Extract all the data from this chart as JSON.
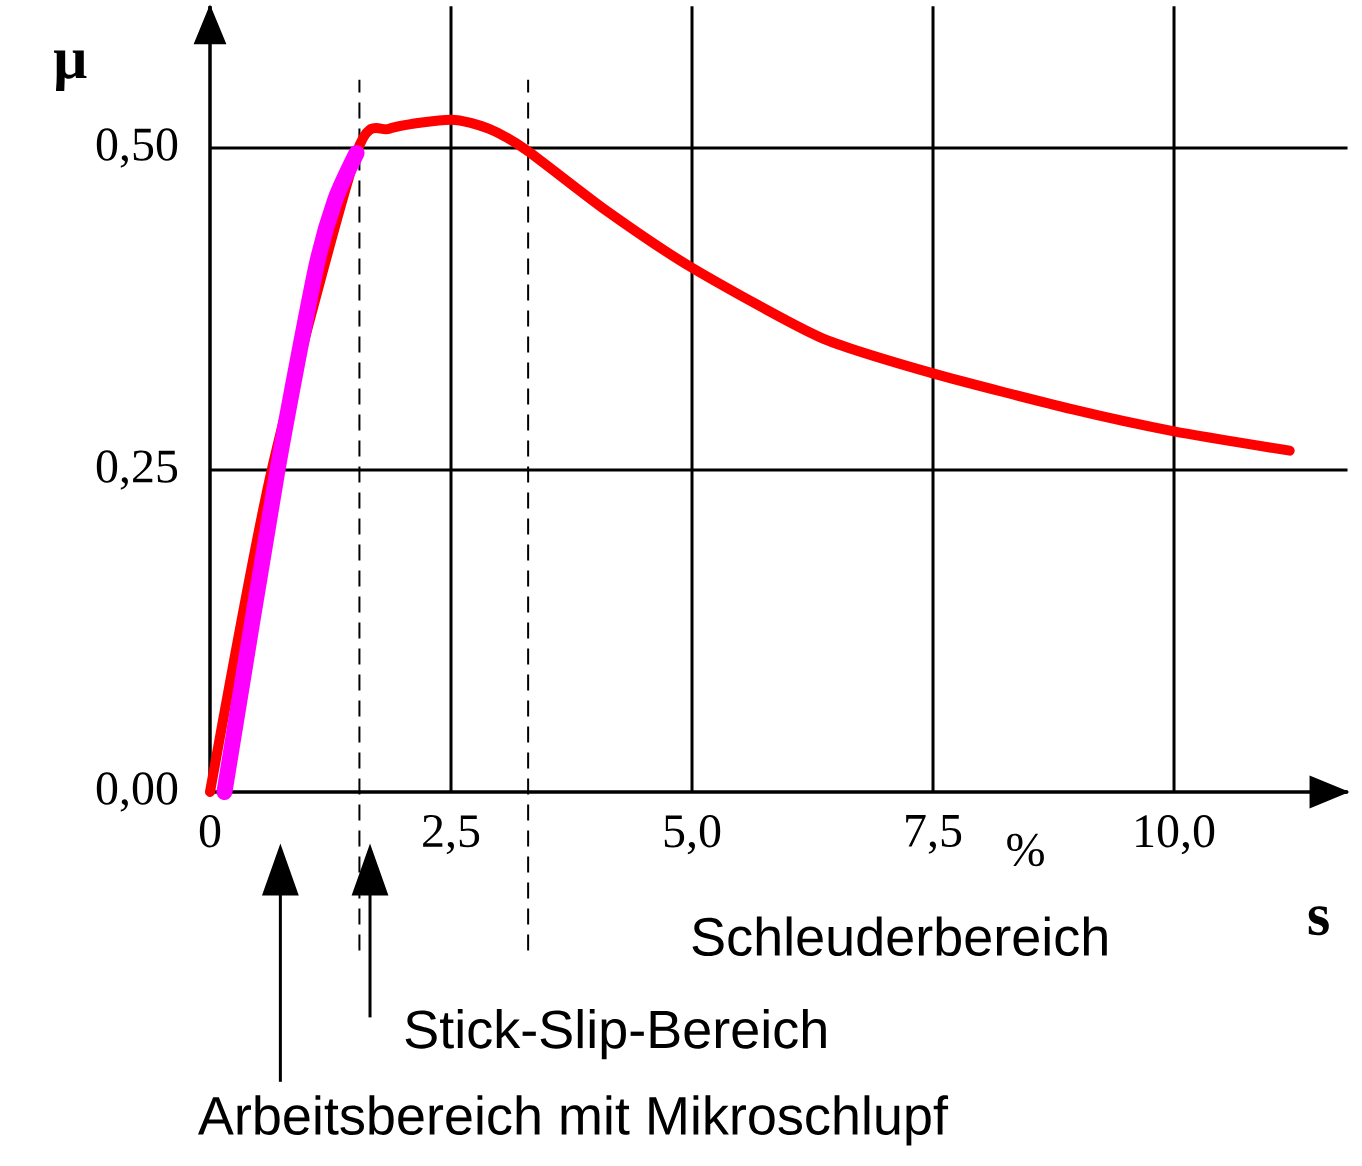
{
  "chart_data": {
    "type": "line",
    "xlabel": "s",
    "ylabel": "μ",
    "x": [
      0,
      0.64,
      1.1,
      1.52,
      1.86,
      2.5,
      2.89,
      3.29,
      4.1,
      5.0,
      6.33,
      7.5,
      8.95,
      10,
      11.2
    ],
    "series": [
      {
        "color": "#ff0000",
        "values": [
          0,
          0.25,
          null,
          0.496,
          0.515,
          0.522,
          0.515,
          0.498,
          0.452,
          0.407,
          0.353,
          0.325,
          0.297,
          0.28,
          0.265
        ]
      },
      {
        "color": "#ff00ff",
        "x": [
          0.15,
          0.7,
          1.1,
          1.3,
          1.52
        ],
        "values": [
          0,
          0.25,
          0.407,
          0.46,
          0.496
        ]
      }
    ],
    "xlim": [
      0,
      11.8
    ],
    "ylim": [
      0,
      0.61
    ],
    "xticks": [
      {
        "value": 0,
        "label": "0"
      },
      {
        "value": 2.5,
        "label": "2,5"
      },
      {
        "value": 5,
        "label": "5,0"
      },
      {
        "value": 7.5,
        "label": "7,5"
      },
      {
        "value": 10,
        "label": "10,0"
      }
    ],
    "yticks": [
      {
        "value": 0,
        "label": "0,00"
      },
      {
        "value": 0.25,
        "label": "0,25"
      },
      {
        "value": 0.5,
        "label": "0,50"
      }
    ],
    "grid": true,
    "marker": "none",
    "line_style": "solid",
    "ref_lines": [
      {
        "axis": "x",
        "value": 1.55,
        "color": "#000000",
        "line_style": "dashed"
      },
      {
        "axis": "x",
        "value": 3.3,
        "color": "#000000",
        "line_style": "dashed"
      }
    ],
    "annotations": [
      "Schleuderbereich",
      "Stick-Slip-Bereich",
      "Arbeitsbereich mit Mikroschlupf",
      "%"
    ]
  }
}
